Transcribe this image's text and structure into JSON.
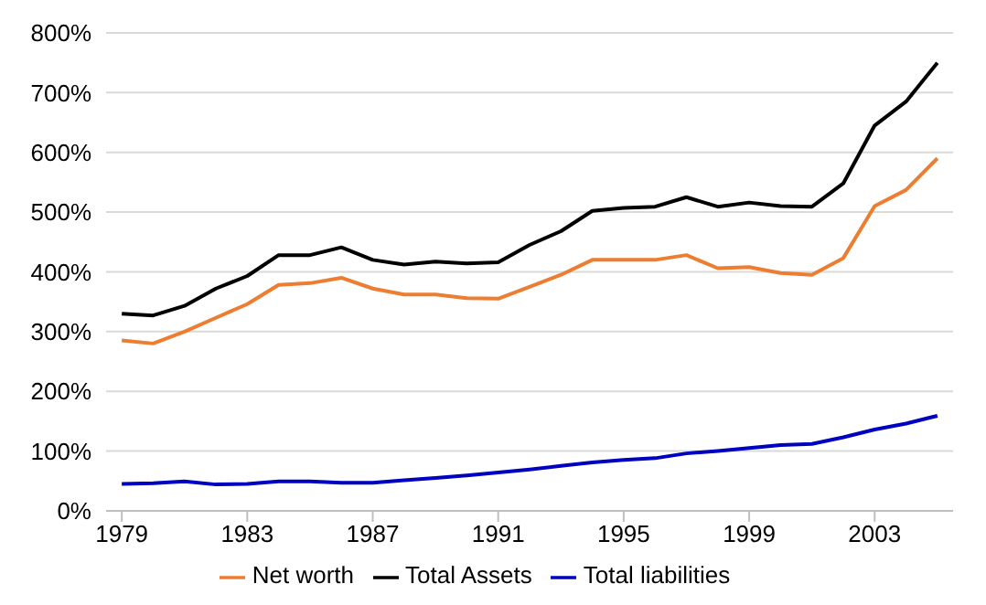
{
  "chart_data": {
    "type": "line",
    "x": [
      1979,
      1980,
      1981,
      1982,
      1983,
      1984,
      1985,
      1986,
      1987,
      1988,
      1989,
      1990,
      1991,
      1992,
      1993,
      1994,
      1995,
      1996,
      1997,
      1998,
      1999,
      2000,
      2001,
      2002,
      2003,
      2004,
      2005
    ],
    "series": [
      {
        "name": "Total Assets",
        "color": "#000000",
        "values": [
          330,
          327,
          343,
          372,
          393,
          428,
          428,
          441,
          420,
          412,
          417,
          414,
          416,
          445,
          468,
          502,
          507,
          509,
          525,
          509,
          516,
          510,
          509,
          548,
          645,
          685,
          750
        ]
      },
      {
        "name": "Total liabilities",
        "color": "#0000c0",
        "values": [
          45,
          46,
          49,
          44,
          45,
          49,
          49,
          47,
          47,
          51,
          55,
          59,
          64,
          69,
          75,
          81,
          85,
          88,
          96,
          100,
          105,
          110,
          112,
          123,
          136,
          146,
          159
        ]
      },
      {
        "name": "Net worth",
        "color": "#ed7d31",
        "values": [
          285,
          280,
          300,
          323,
          346,
          378,
          381,
          390,
          372,
          362,
          362,
          356,
          355,
          375,
          395,
          420,
          420,
          420,
          428,
          406,
          408,
          398,
          395,
          423,
          510,
          537,
          590
        ]
      }
    ],
    "xlim": [
      1978.5,
      2005.5
    ],
    "xticks": [
      1979,
      1983,
      1987,
      1991,
      1995,
      1999,
      2003
    ],
    "ylim": [
      0,
      800
    ],
    "yticks": [
      {
        "value": 0,
        "label": "0%"
      },
      {
        "value": 100,
        "label": "100%"
      },
      {
        "value": 200,
        "label": "200%"
      },
      {
        "value": 300,
        "label": "300%"
      },
      {
        "value": 400,
        "label": "400%"
      },
      {
        "value": 500,
        "label": "500%"
      },
      {
        "value": 600,
        "label": "600%"
      },
      {
        "value": 700,
        "label": "700%"
      },
      {
        "value": 800,
        "label": "800%"
      }
    ],
    "grid": "y",
    "legend": "bottom",
    "marker": "none",
    "line_style": "solid"
  }
}
